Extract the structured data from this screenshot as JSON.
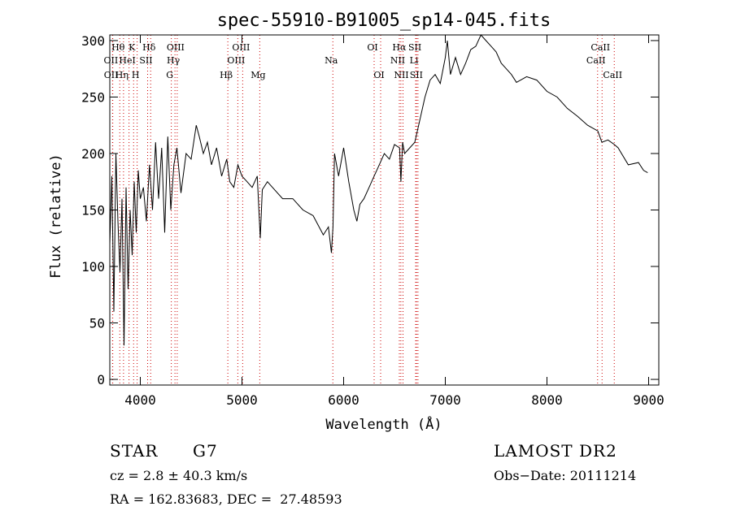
{
  "chart_data": {
    "type": "line",
    "title": "spec-55910-B91005_sp14-045.fits",
    "xlabel": "Wavelength (Å)",
    "ylabel": "Flux (relative)",
    "xlim": [
      3700,
      9100
    ],
    "ylim": [
      -5,
      305
    ],
    "x_ticks": [
      4000,
      5000,
      6000,
      7000,
      8000,
      9000
    ],
    "y_ticks": [
      0,
      50,
      100,
      150,
      200,
      250,
      300
    ],
    "grid": false,
    "line_color": "#000000",
    "marker_color": "#cc0000",
    "series": [
      {
        "x": [
          3700,
          3720,
          3740,
          3760,
          3780,
          3800,
          3820,
          3840,
          3860,
          3880,
          3900,
          3920,
          3940,
          3960,
          3980,
          4000,
          4030,
          4060,
          4090,
          4120,
          4150,
          4180,
          4210,
          4240,
          4270,
          4300,
          4330,
          4360,
          4400,
          4450,
          4500,
          4550,
          4580,
          4620,
          4660,
          4700,
          4750,
          4800,
          4850,
          4880,
          4920,
          4960,
          5000,
          5050,
          5100,
          5150,
          5180,
          5200,
          5250,
          5300,
          5400,
          5500,
          5600,
          5700,
          5800,
          5850,
          5880,
          5895,
          5910,
          5930,
          5950,
          6000,
          6050,
          6100,
          6130,
          6160,
          6200,
          6250,
          6300,
          6350,
          6400,
          6450,
          6500,
          6550,
          6563,
          6580,
          6600,
          6650,
          6700,
          6750,
          6800,
          6850,
          6900,
          6950,
          7000,
          7020,
          7050,
          7100,
          7150,
          7200,
          7250,
          7300,
          7350,
          7400,
          7450,
          7500,
          7550,
          7600,
          7650,
          7700,
          7800,
          7900,
          8000,
          8100,
          8200,
          8300,
          8400,
          8500,
          8540,
          8600,
          8662,
          8700,
          8800,
          8900,
          8950,
          8990
        ],
        "y": [
          120,
          180,
          60,
          200,
          140,
          95,
          160,
          30,
          170,
          80,
          150,
          110,
          175,
          130,
          185,
          160,
          170,
          140,
          190,
          150,
          210,
          160,
          205,
          130,
          215,
          150,
          190,
          205,
          165,
          200,
          195,
          225,
          215,
          200,
          210,
          190,
          205,
          180,
          195,
          175,
          170,
          190,
          180,
          175,
          170,
          180,
          125,
          168,
          175,
          170,
          160,
          160,
          150,
          145,
          128,
          135,
          112,
          135,
          200,
          190,
          180,
          205,
          175,
          150,
          140,
          155,
          160,
          170,
          180,
          190,
          200,
          195,
          208,
          205,
          175,
          210,
          200,
          205,
          210,
          230,
          250,
          265,
          270,
          262,
          285,
          300,
          270,
          285,
          270,
          280,
          292,
          295,
          305,
          300,
          295,
          290,
          280,
          275,
          270,
          263,
          268,
          265,
          255,
          250,
          240,
          233,
          225,
          220,
          210,
          212,
          208,
          205,
          190,
          192,
          185,
          183
        ]
      }
    ],
    "line_markers": [
      {
        "label": "Hθ",
        "wavelength": 3798
      },
      {
        "label": "OII",
        "wavelength": 3727
      },
      {
        "label": "OII",
        "wavelength": 3729
      },
      {
        "label": "Hη",
        "wavelength": 3835
      },
      {
        "label": "K",
        "wavelength": 3934
      },
      {
        "label": "HeI",
        "wavelength": 3889
      },
      {
        "label": "H",
        "wavelength": 3969
      },
      {
        "label": "Hδ",
        "wavelength": 4102
      },
      {
        "label": "SII",
        "wavelength": 4072
      },
      {
        "label": "OIII",
        "wavelength": 4363
      },
      {
        "label": "Hγ",
        "wavelength": 4341
      },
      {
        "label": "G",
        "wavelength": 4305
      },
      {
        "label": "Hβ",
        "wavelength": 4861
      },
      {
        "label": "OIII",
        "wavelength": 5007
      },
      {
        "label": "OIII",
        "wavelength": 4959
      },
      {
        "label": "Mg",
        "wavelength": 5175
      },
      {
        "label": "Na",
        "wavelength": 5894
      },
      {
        "label": "OI",
        "wavelength": 6300
      },
      {
        "label": "OI",
        "wavelength": 6364
      },
      {
        "label": "Hα",
        "wavelength": 6563
      },
      {
        "label": "NII",
        "wavelength": 6548
      },
      {
        "label": "NII",
        "wavelength": 6584
      },
      {
        "label": "SII",
        "wavelength": 6717
      },
      {
        "label": "Li",
        "wavelength": 6708
      },
      {
        "label": "SII",
        "wavelength": 6731
      },
      {
        "label": "CaII",
        "wavelength": 8542
      },
      {
        "label": "CaII",
        "wavelength": 8498
      },
      {
        "label": "CaII",
        "wavelength": 8662
      }
    ]
  },
  "info": {
    "object_class": "STAR",
    "subclass": "G7",
    "survey": "LAMOST DR2",
    "cz": "cz = 2.8 ± 40.3 km/s",
    "obs_date": "Obs−Date: 20111214",
    "coords": "RA = 162.83683, DEC =  27.48593"
  }
}
